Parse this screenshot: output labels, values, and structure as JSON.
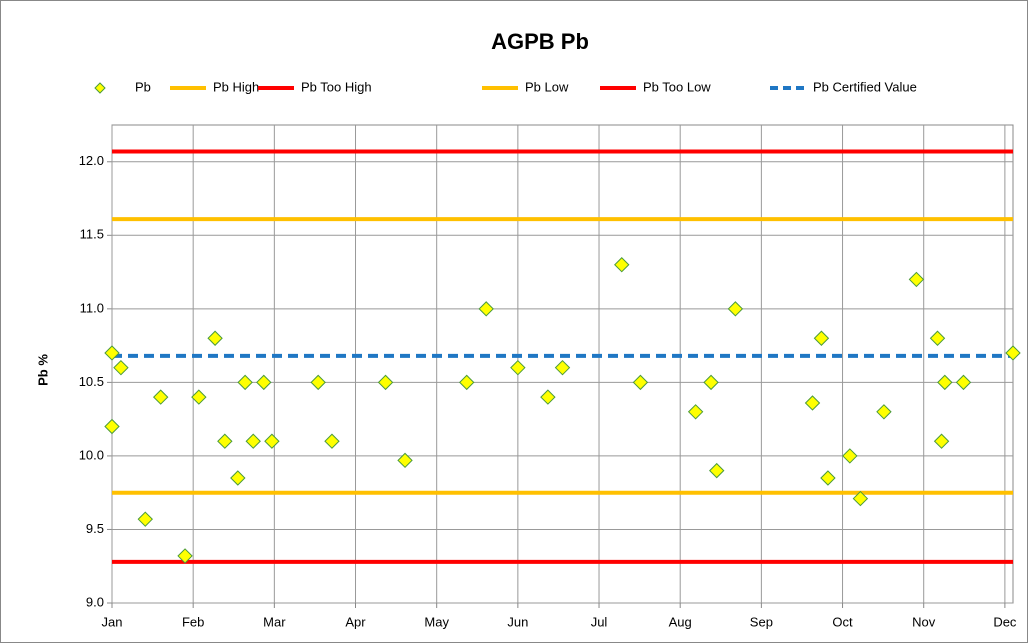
{
  "chart_data": {
    "type": "scatter",
    "title": "AGPB Pb",
    "y_label": "Pb %",
    "xlim": [
      0,
      11.1
    ],
    "ylim": [
      9.0,
      12.25
    ],
    "xticks": [
      {
        "value": 0,
        "label": "Jan"
      },
      {
        "value": 1,
        "label": "Feb"
      },
      {
        "value": 2,
        "label": "Mar"
      },
      {
        "value": 3,
        "label": "Apr"
      },
      {
        "value": 4,
        "label": "May"
      },
      {
        "value": 5,
        "label": "Jun"
      },
      {
        "value": 6,
        "label": "Jul"
      },
      {
        "value": 7,
        "label": "Aug"
      },
      {
        "value": 8,
        "label": "Sep"
      },
      {
        "value": 9,
        "label": "Oct"
      },
      {
        "value": 10,
        "label": "Nov"
      },
      {
        "value": 11,
        "label": "Dec"
      }
    ],
    "yticks": [
      {
        "value": 9,
        "label": "9.0"
      },
      9.5,
      {
        "value": 10,
        "label": "10.0"
      },
      10.5,
      {
        "value": 11,
        "label": "11.0"
      },
      11.5,
      {
        "value": 12,
        "label": "12.0"
      }
    ],
    "grid": true,
    "legend": "top",
    "series": [
      {
        "name": "Pb",
        "color": "#ffff00",
        "edge": "#4a9a3c",
        "x": [
          0,
          0,
          0.11,
          0.41,
          0.6,
          0.9,
          1.07,
          1.27,
          1.39,
          1.55,
          1.64,
          1.74,
          1.87,
          1.97,
          2.54,
          2.71,
          3.37,
          3.61,
          4.37,
          4.61,
          5.0,
          5.37,
          5.55,
          6.28,
          6.51,
          7.19,
          7.38,
          7.45,
          7.68,
          8.63,
          8.74,
          8.82,
          9.09,
          9.22,
          9.51,
          9.91,
          10.17,
          10.22,
          10.26,
          10.49,
          11.1
        ],
        "values": [
          10.7,
          10.2,
          10.6,
          9.57,
          10.4,
          9.32,
          10.4,
          10.8,
          10.1,
          9.85,
          10.5,
          10.1,
          10.5,
          10.1,
          10.5,
          10.1,
          10.5,
          9.97,
          10.5,
          11.0,
          10.6,
          10.4,
          10.6,
          11.3,
          10.5,
          10.3,
          10.5,
          9.9,
          11.0,
          10.36,
          10.8,
          9.85,
          10.0,
          9.71,
          10.3,
          11.2,
          10.8,
          10.1,
          10.5,
          10.5,
          10.7
        ]
      },
      {
        "name": "Pb High",
        "color": "#ffc000",
        "value": 11.61
      },
      {
        "name": "Pb Too High",
        "color": "#ff0000",
        "value": 12.07
      },
      {
        "name": "Pb Low",
        "color": "#ffc000",
        "value": 9.75
      },
      {
        "name": "Pb Too Low",
        "color": "#ff0000",
        "value": 9.28
      },
      {
        "name": "Pb Certified Value",
        "color": "#1f77c4",
        "value": 10.68,
        "dashed": true
      }
    ]
  }
}
